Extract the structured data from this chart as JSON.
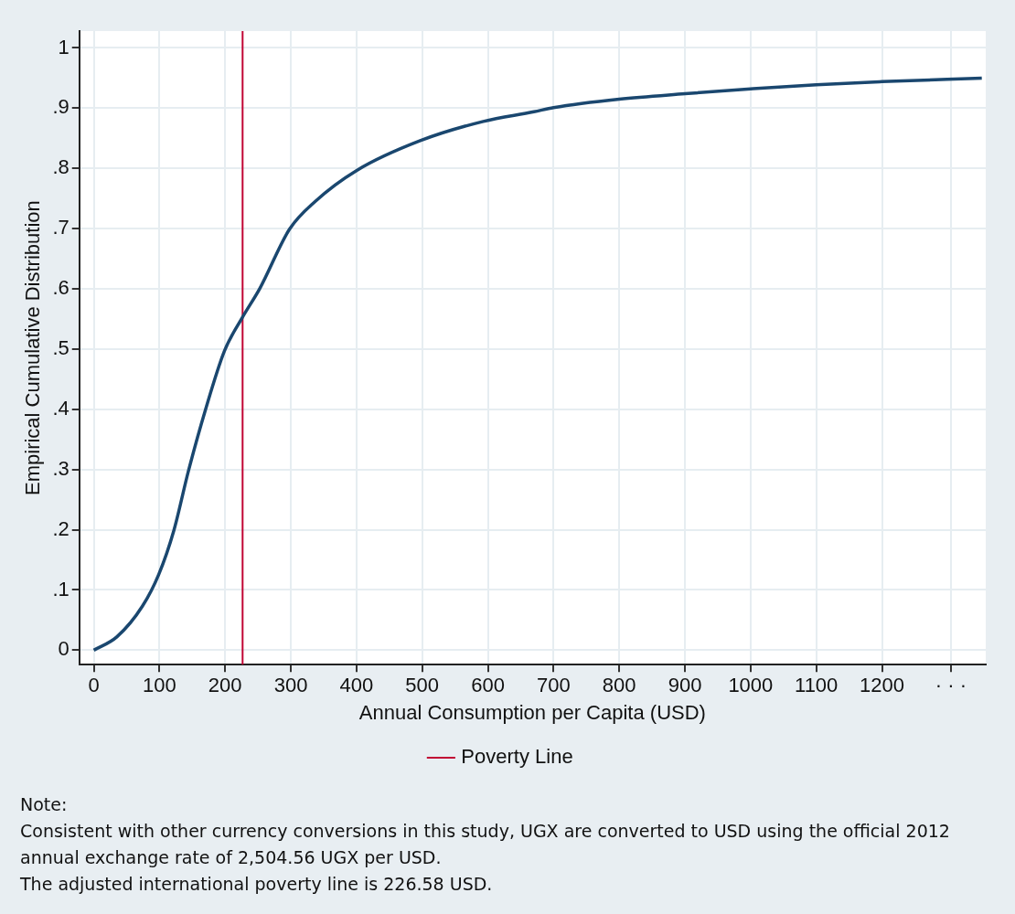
{
  "chart_data": {
    "type": "line",
    "xlabel": "Annual Consumption per Capita (USD)",
    "ylabel": "Empirical Cumulative Distribution",
    "x": [
      0,
      35,
      74,
      99,
      122,
      144,
      170,
      199,
      226,
      253,
      298,
      337,
      401,
      497,
      593,
      670,
      700,
      800,
      900,
      1000,
      1100,
      1200,
      1352
    ],
    "series": [
      {
        "color": "#1a476f",
        "values": [
          0,
          0.022,
          0.073,
          0.126,
          0.199,
          0.297,
          0.399,
          0.497,
          0.552,
          0.601,
          0.699,
          0.745,
          0.797,
          0.846,
          0.878,
          0.894,
          0.901,
          0.915,
          0.924,
          0.932,
          0.939,
          0.944,
          0.95
        ]
      }
    ],
    "xlim": [
      -22,
      1358
    ],
    "ylim": [
      -0.024,
      1.028
    ],
    "xticks": [
      0,
      100,
      200,
      300,
      400,
      500,
      600,
      700,
      800,
      900,
      1000,
      1100,
      1200,
      {
        "value": 1305,
        "label": "· · ·"
      }
    ],
    "yticks": [
      0,
      {
        "value": 0.1,
        "label": ".1"
      },
      {
        "value": 0.2,
        "label": ".2"
      },
      {
        "value": 0.3,
        "label": ".3"
      },
      {
        "value": 0.4,
        "label": ".4"
      },
      {
        "value": 0.5,
        "label": ".5"
      },
      {
        "value": 0.6,
        "label": ".6"
      },
      {
        "value": 0.7,
        "label": ".7"
      },
      {
        "value": 0.8,
        "label": ".8"
      },
      {
        "value": 0.9,
        "label": ".9"
      },
      1
    ],
    "ref_lines": [
      {
        "axis": "x",
        "value": 226.58,
        "label": "Poverty Line",
        "color": "#c10534"
      }
    ],
    "grid": true,
    "legend": "bottom",
    "marker": "none",
    "line_style": "solid",
    "annotations": [
      "Note:",
      "Consistent with other currency conversions in this study, UGX are converted to USD using the official 2012 annual exchange rate of 2,504.56 UGX per USD.",
      "The adjusted international poverty line is 226.58 USD."
    ]
  }
}
